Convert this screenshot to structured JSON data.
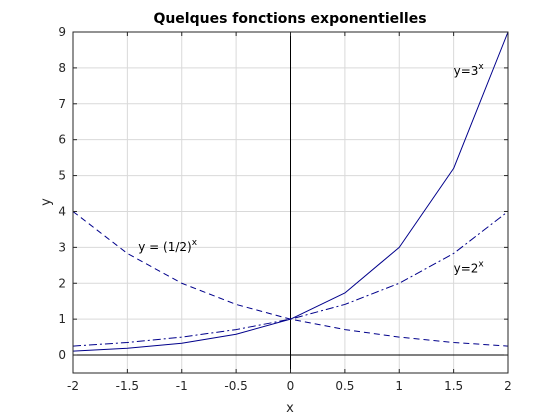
{
  "chart_data": {
    "type": "line",
    "title": "Quelques fonctions exponentielles",
    "xlabel": "x",
    "ylabel": "y",
    "xlim": [
      -2,
      2
    ],
    "ylim": [
      -0.5,
      9
    ],
    "grid": true,
    "xticks": [
      {
        "value": -2,
        "label": "-2"
      },
      {
        "value": -1.5,
        "label": "-1.5"
      },
      {
        "value": -1,
        "label": "-1"
      },
      {
        "value": -0.5,
        "label": "-0.5"
      },
      {
        "value": 0,
        "label": "0"
      },
      {
        "value": 0.5,
        "label": "0.5"
      },
      {
        "value": 1,
        "label": "1"
      },
      {
        "value": 1.5,
        "label": "1.5"
      },
      {
        "value": 2,
        "label": "2"
      }
    ],
    "yticks": [
      {
        "value": 0,
        "label": "0"
      },
      {
        "value": 1,
        "label": "1"
      },
      {
        "value": 2,
        "label": "2"
      },
      {
        "value": 3,
        "label": "3"
      },
      {
        "value": 4,
        "label": "4"
      },
      {
        "value": 5,
        "label": "5"
      },
      {
        "value": 6,
        "label": "6"
      },
      {
        "value": 7,
        "label": "7"
      },
      {
        "value": 8,
        "label": "8"
      },
      {
        "value": 9,
        "label": "9"
      }
    ],
    "reference_lines": {
      "x": 0,
      "y": 0
    },
    "series": [
      {
        "id": "pow3",
        "color": "#00008b",
        "linestyle": "solid",
        "x": [
          -2,
          -1.5,
          -1,
          -0.5,
          0,
          0.5,
          1,
          1.5,
          2
        ],
        "y": [
          0.11,
          0.19,
          0.33,
          0.58,
          1,
          1.73,
          3,
          5.2,
          9
        ]
      },
      {
        "id": "pow2",
        "color": "#00008b",
        "linestyle": "dashdot",
        "x": [
          -2,
          -1.5,
          -1,
          -0.5,
          0,
          0.5,
          1,
          1.5,
          2
        ],
        "y": [
          0.25,
          0.35,
          0.5,
          0.71,
          1,
          1.41,
          2,
          2.83,
          4
        ]
      },
      {
        "id": "half",
        "color": "#00008b",
        "linestyle": "dashed",
        "x": [
          -2,
          -1.5,
          -1,
          -0.5,
          0,
          0.5,
          1,
          1.5,
          2
        ],
        "y": [
          4,
          2.83,
          2,
          1.41,
          1,
          0.71,
          0.5,
          0.35,
          0.25
        ]
      }
    ],
    "annotations": [
      {
        "id": "pow3",
        "base": "y=3",
        "sup": "x",
        "at": [
          1.5,
          7.8
        ]
      },
      {
        "id": "pow2",
        "base": "y=2",
        "sup": "x",
        "at": [
          1.5,
          2.3
        ]
      },
      {
        "id": "half",
        "base": "y = (1/2)",
        "sup": "x",
        "at": [
          -1.4,
          2.9
        ]
      }
    ]
  }
}
